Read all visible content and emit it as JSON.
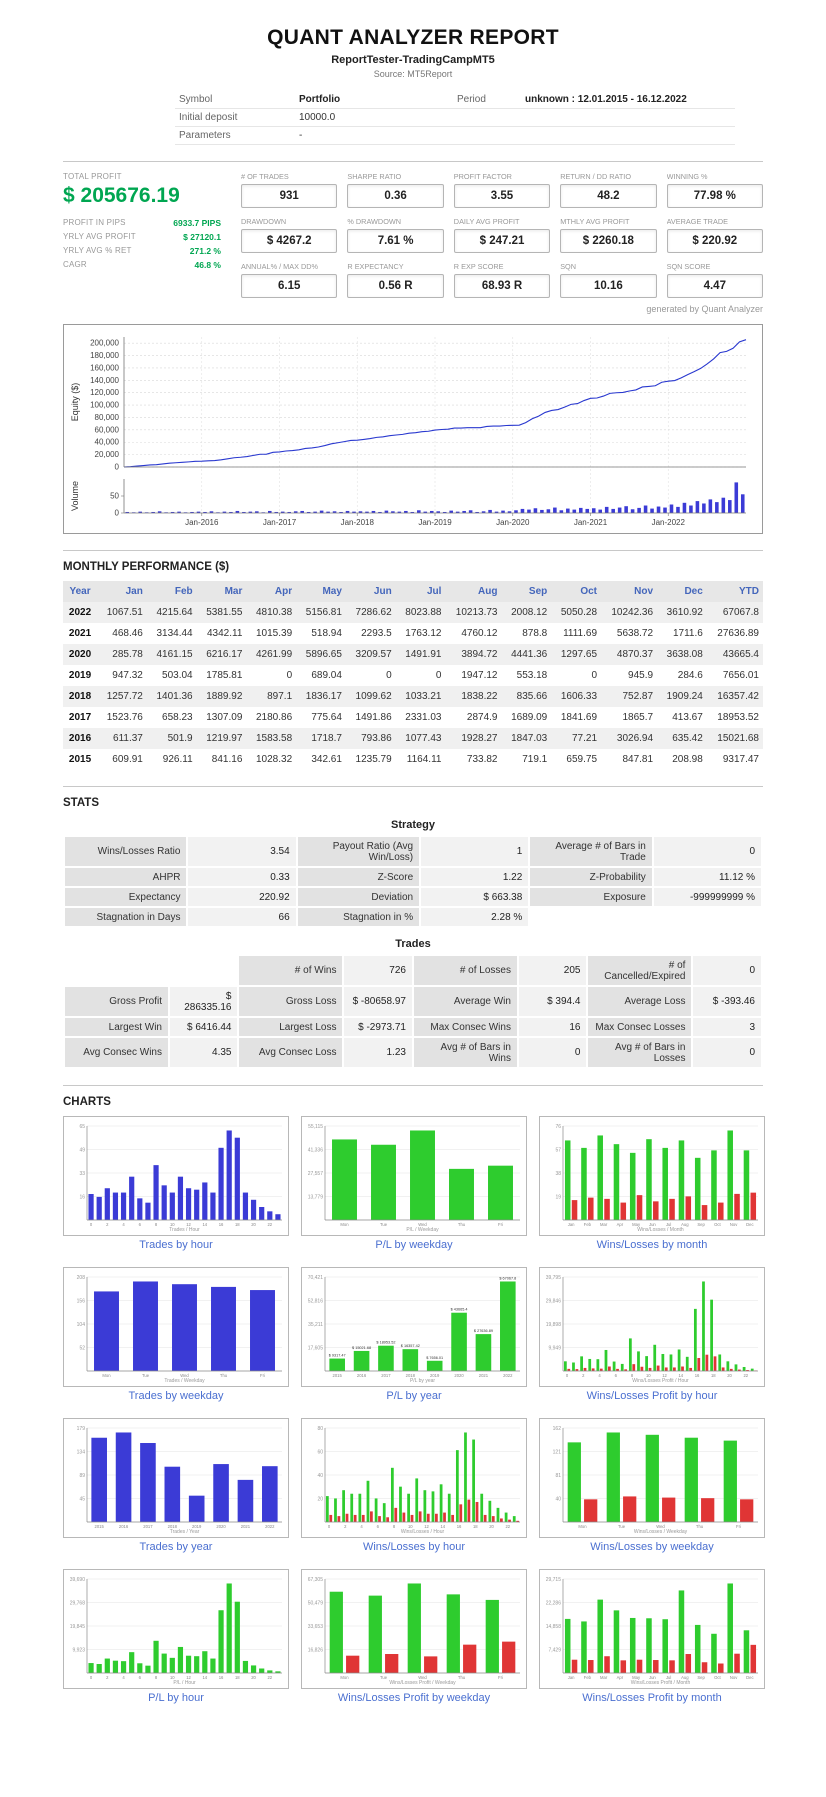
{
  "colors": {
    "green": "#00a651",
    "link": "#4a6fd0",
    "header_blue": "#4466bb",
    "bar_blue": "#3b3bd6",
    "bar_green": "#2ecc2e",
    "bar_red": "#e03535",
    "line": "#2938cf"
  },
  "header": {
    "title": "QUANT ANALYZER REPORT",
    "subtitle": "ReportTester-TradingCampMT5",
    "source": "Source: MT5Report"
  },
  "info": {
    "symbol_label": "Symbol",
    "symbol_value": "Portfolio",
    "period_label": "Period",
    "period_value": "unknown : 12.01.2015 - 16.12.2022",
    "initial_deposit_label": "Initial deposit",
    "initial_deposit_value": "10000.0",
    "parameters_label": "Parameters",
    "parameters_value": "-"
  },
  "summary": {
    "total_profit_label": "TOTAL PROFIT",
    "total_profit_value": "$ 205676.19",
    "rows": [
      {
        "label": "PROFIT IN PIPS",
        "value": "6933.7 PIPS"
      },
      {
        "label": "YRLY AVG PROFIT",
        "value": "$ 27120.1"
      },
      {
        "label": "YRLY AVG % RET",
        "value": "271.2 %"
      },
      {
        "label": "CAGR",
        "value": "46.8 %"
      }
    ],
    "generated_by": "generated by Quant Analyzer"
  },
  "kpis": [
    {
      "label": "# OF TRADES",
      "value": "931"
    },
    {
      "label": "SHARPE RATIO",
      "value": "0.36"
    },
    {
      "label": "PROFIT FACTOR",
      "value": "3.55"
    },
    {
      "label": "RETURN / DD RATIO",
      "value": "48.2"
    },
    {
      "label": "WINNING %",
      "value": "77.98 %"
    },
    {
      "label": "DRAWDOWN",
      "value": "$ 4267.2"
    },
    {
      "label": "% DRAWDOWN",
      "value": "7.61 %"
    },
    {
      "label": "DAILY AVG PROFIT",
      "value": "$ 247.21"
    },
    {
      "label": "MTHLY AVG PROFIT",
      "value": "$ 2260.18"
    },
    {
      "label": "AVERAGE TRADE",
      "value": "$ 220.92"
    },
    {
      "label": "ANNUAL% / MAX DD%",
      "value": "6.15"
    },
    {
      "label": "R EXPECTANCY",
      "value": "0.56 R"
    },
    {
      "label": "R EXP SCORE",
      "value": "68.93 R"
    },
    {
      "label": "SQN",
      "value": "10.16"
    },
    {
      "label": "SQN SCORE",
      "value": "4.47"
    }
  ],
  "monthly": {
    "title": "MONTHLY PERFORMANCE ($)",
    "columns": [
      "Year",
      "Jan",
      "Feb",
      "Mar",
      "Apr",
      "May",
      "Jun",
      "Jul",
      "Aug",
      "Sep",
      "Oct",
      "Nov",
      "Dec",
      "YTD"
    ],
    "rows": [
      [
        "2022",
        "1067.51",
        "4215.64",
        "5381.55",
        "4810.38",
        "5156.81",
        "7286.62",
        "8023.88",
        "10213.73",
        "2008.12",
        "5050.28",
        "10242.36",
        "3610.92",
        "67067.8"
      ],
      [
        "2021",
        "468.46",
        "3134.44",
        "4342.11",
        "1015.39",
        "518.94",
        "2293.5",
        "1763.12",
        "4760.12",
        "878.8",
        "1111.69",
        "5638.72",
        "1711.6",
        "27636.89"
      ],
      [
        "2020",
        "285.78",
        "4161.15",
        "6216.17",
        "4261.99",
        "5896.65",
        "3209.57",
        "1491.91",
        "3894.72",
        "4441.36",
        "1297.65",
        "4870.37",
        "3638.08",
        "43665.4"
      ],
      [
        "2019",
        "947.32",
        "503.04",
        "1785.81",
        "0",
        "689.04",
        "0",
        "0",
        "1947.12",
        "553.18",
        "0",
        "945.9",
        "284.6",
        "7656.01"
      ],
      [
        "2018",
        "1257.72",
        "1401.36",
        "1889.92",
        "897.1",
        "1836.17",
        "1099.62",
        "1033.21",
        "1838.22",
        "835.66",
        "1606.33",
        "752.87",
        "1909.24",
        "16357.42"
      ],
      [
        "2017",
        "1523.76",
        "658.23",
        "1307.09",
        "2180.86",
        "775.64",
        "1491.86",
        "2331.03",
        "2874.9",
        "1689.09",
        "1841.69",
        "1865.7",
        "413.67",
        "18953.52"
      ],
      [
        "2016",
        "611.37",
        "501.9",
        "1219.97",
        "1583.58",
        "1718.7",
        "793.86",
        "1077.43",
        "1928.27",
        "1847.03",
        "77.21",
        "3026.94",
        "635.42",
        "15021.68"
      ],
      [
        "2015",
        "609.91",
        "926.11",
        "841.16",
        "1028.32",
        "342.61",
        "1235.79",
        "1164.11",
        "733.82",
        "719.1",
        "659.75",
        "847.81",
        "208.98",
        "9317.47"
      ]
    ]
  },
  "stats": {
    "title": "STATS",
    "strategy_title": "Strategy",
    "strategy_rows": [
      [
        [
          "Wins/Losses Ratio",
          "3.54"
        ],
        [
          "Payout Ratio (Avg Win/Loss)",
          "1"
        ],
        [
          "Average # of Bars in Trade",
          "0"
        ]
      ],
      [
        [
          "AHPR",
          "0.33"
        ],
        [
          "Z-Score",
          "1.22"
        ],
        [
          "Z-Probability",
          "11.12 %"
        ]
      ],
      [
        [
          "Expectancy",
          "220.92"
        ],
        [
          "Deviation",
          "$ 663.38"
        ],
        [
          "Exposure",
          "-999999999 %"
        ]
      ],
      [
        [
          "Stagnation in Days",
          "66"
        ],
        [
          "Stagnation in %",
          "2.28 %"
        ],
        [
          "",
          ""
        ]
      ]
    ],
    "trades_title": "Trades",
    "trades_rows": [
      [
        [
          "",
          ""
        ],
        [
          "# of Wins",
          "726"
        ],
        [
          "# of Losses",
          "205"
        ],
        [
          "# of Cancelled/Expired",
          "0"
        ]
      ],
      [
        [
          "Gross Profit",
          "$ 286335.16"
        ],
        [
          "Gross Loss",
          "$ -80658.97"
        ],
        [
          "Average Win",
          "$ 394.4"
        ],
        [
          "Average Loss",
          "$ -393.46"
        ]
      ],
      [
        [
          "Largest Win",
          "$ 6416.44"
        ],
        [
          "Largest Loss",
          "$ -2973.71"
        ],
        [
          "Max Consec Wins",
          "16"
        ],
        [
          "Max Consec Losses",
          "3"
        ]
      ],
      [
        [
          "Avg Consec Wins",
          "4.35"
        ],
        [
          "Avg Consec Loss",
          "1.23"
        ],
        [
          "Avg # of Bars in Wins",
          "0"
        ],
        [
          "Avg # of Bars in Losses",
          "0"
        ]
      ]
    ]
  },
  "charts_section": {
    "title": "CHARTS"
  },
  "chart_data": {
    "equity": {
      "type": "line",
      "ylabel": "Equity ($)",
      "volume_label": "Volume",
      "y_ticks": [
        0,
        20000,
        40000,
        60000,
        80000,
        100000,
        120000,
        140000,
        160000,
        180000,
        200000
      ],
      "x_labels": [
        "Jan-2016",
        "Jan-2017",
        "Jan-2018",
        "Jan-2019",
        "Jan-2020",
        "Jan-2021",
        "Jan-2022"
      ],
      "volume_ticks": [
        0,
        50
      ],
      "end_value": 205676.19,
      "volume": [
        3,
        2,
        4,
        2,
        3,
        5,
        2,
        3,
        4,
        2,
        3,
        4,
        3,
        5,
        2,
        4,
        3,
        6,
        3,
        4,
        5,
        2,
        6,
        3,
        4,
        3,
        5,
        6,
        3,
        4,
        7,
        4,
        5,
        3,
        6,
        4,
        5,
        4,
        6,
        3,
        7,
        5,
        4,
        6,
        3,
        8,
        4,
        6,
        5,
        3,
        7,
        4,
        6,
        8,
        3,
        5,
        9,
        4,
        7,
        5,
        8,
        12,
        10,
        14,
        9,
        11,
        16,
        8,
        13,
        10,
        15,
        12,
        14,
        10,
        18,
        12,
        16,
        20,
        11,
        15,
        22,
        13,
        19,
        16,
        25,
        18,
        30,
        22,
        35,
        28,
        40,
        32,
        45,
        38,
        90,
        55
      ]
    },
    "mini": [
      {
        "title": "Trades by hour",
        "type": "bar",
        "color": "blue",
        "xlabel": "Trades / Hour",
        "categories": [
          "0",
          "1",
          "2",
          "3",
          "4",
          "5",
          "6",
          "7",
          "8",
          "9",
          "10",
          "11",
          "12",
          "13",
          "14",
          "15",
          "16",
          "17",
          "18",
          "19",
          "20",
          "21",
          "22",
          "23"
        ],
        "values": [
          18,
          16,
          22,
          19,
          19,
          30,
          15,
          12,
          38,
          24,
          19,
          30,
          22,
          21,
          26,
          19,
          50,
          62,
          57,
          19,
          14,
          9,
          6,
          4
        ]
      },
      {
        "title": "P/L by weekday",
        "type": "bar",
        "color": "green",
        "xlabel": "P/L / Weekday",
        "categories": [
          "Mon",
          "Tue",
          "Wed",
          "Thu",
          "Fri"
        ],
        "values": [
          47235,
          44120,
          52490,
          29980,
          31851
        ]
      },
      {
        "title": "Wins/Losses by month",
        "type": "winloss",
        "xlabel": "Wins/Losses / Month",
        "categories": [
          "Jan",
          "Feb",
          "Mar",
          "Apr",
          "May",
          "Jun",
          "Jul",
          "Aug",
          "Sep",
          "Oct",
          "Nov",
          "Dec"
        ],
        "wins": [
          64,
          58,
          68,
          61,
          54,
          65,
          58,
          64,
          50,
          56,
          72,
          56
        ],
        "losses": [
          16,
          18,
          17,
          14,
          20,
          15,
          17,
          19,
          12,
          14,
          21,
          22
        ]
      },
      {
        "title": "Trades by weekday",
        "type": "bar",
        "color": "blue",
        "xlabel": "Trades / Weekday",
        "categories": [
          "Mon",
          "Tue",
          "Wed",
          "Thu",
          "Fri"
        ],
        "values": [
          176,
          198,
          192,
          186,
          179
        ]
      },
      {
        "title": "P/L by year",
        "type": "bar",
        "color": "green",
        "xlabel": "P/L by year",
        "show_labels": true,
        "categories": [
          "2015",
          "2016",
          "2017",
          "2018",
          "2019",
          "2020",
          "2021",
          "2022"
        ],
        "values": [
          9317.47,
          15021.68,
          18953.52,
          16357.42,
          7656.01,
          43665.4,
          27636.89,
          67067.8
        ]
      },
      {
        "title": "Wins/Losses Profit by hour",
        "type": "winloss",
        "xlabel": "Wins/Losses Profit / Hour",
        "categories": [
          "0",
          "1",
          "2",
          "3",
          "4",
          "5",
          "6",
          "7",
          "8",
          "9",
          "10",
          "11",
          "12",
          "13",
          "14",
          "15",
          "16",
          "17",
          "18",
          "19",
          "20",
          "21",
          "22",
          "23"
        ],
        "wins": [
          4100,
          3600,
          6200,
          5100,
          5000,
          8900,
          4000,
          3000,
          13800,
          8300,
          6300,
          11100,
          7200,
          7000,
          9100,
          6000,
          26300,
          37900,
          30200,
          7000,
          4100,
          2800,
          1700,
          1000
        ],
        "losses": [
          900,
          800,
          1300,
          1100,
          1000,
          1900,
          900,
          700,
          2900,
          1800,
          1300,
          2300,
          1500,
          1500,
          1900,
          1300,
          5500,
          6900,
          6200,
          1500,
          900,
          600,
          400,
          200
        ]
      },
      {
        "title": "Trades by year",
        "type": "bar",
        "color": "blue",
        "xlabel": "Trades / Year",
        "categories": [
          "2015",
          "2016",
          "2017",
          "2018",
          "2019",
          "2020",
          "2021",
          "2022"
        ],
        "values": [
          160,
          170,
          150,
          105,
          50,
          110,
          80,
          106
        ]
      },
      {
        "title": "Wins/Losses by hour",
        "type": "winloss",
        "xlabel": "Wins/Losses / Hour",
        "categories": [
          "0",
          "1",
          "2",
          "3",
          "4",
          "5",
          "6",
          "7",
          "8",
          "9",
          "10",
          "11",
          "12",
          "13",
          "14",
          "15",
          "16",
          "17",
          "18",
          "19",
          "20",
          "21",
          "22",
          "23"
        ],
        "wins": [
          22,
          20,
          27,
          24,
          24,
          35,
          20,
          16,
          46,
          30,
          24,
          37,
          27,
          26,
          32,
          24,
          61,
          76,
          70,
          24,
          18,
          12,
          8,
          5
        ],
        "losses": [
          6,
          5,
          7,
          6,
          6,
          9,
          5,
          4,
          12,
          8,
          6,
          9,
          7,
          7,
          8,
          6,
          15,
          19,
          17,
          6,
          5,
          3,
          2,
          1
        ]
      },
      {
        "title": "Wins/Losses by weekday",
        "type": "winloss",
        "xlabel": "Wins/Losses / Weekday",
        "categories": [
          "Mon",
          "Tue",
          "Wed",
          "Thu",
          "Fri"
        ],
        "wins": [
          137,
          154,
          150,
          145,
          140
        ],
        "losses": [
          39,
          44,
          42,
          41,
          39
        ]
      },
      {
        "title": "P/L by hour",
        "type": "bar",
        "color": "green",
        "xlabel": "P/L / Hour",
        "categories": [
          "0",
          "1",
          "2",
          "3",
          "4",
          "5",
          "6",
          "7",
          "8",
          "9",
          "10",
          "11",
          "12",
          "13",
          "14",
          "15",
          "16",
          "17",
          "18",
          "19",
          "20",
          "21",
          "22",
          "23"
        ],
        "values": [
          4200,
          3800,
          6100,
          5200,
          5000,
          8800,
          4100,
          3100,
          13600,
          8200,
          6400,
          11000,
          7300,
          7100,
          9200,
          6100,
          26500,
          37800,
          30100,
          5100,
          3200,
          1900,
          1100,
          700
        ]
      },
      {
        "title": "Wins/Losses Profit by weekday",
        "type": "winloss",
        "xlabel": "Wins/Losses Profit / Weekday",
        "categories": [
          "Mon",
          "Tue",
          "Wed",
          "Thu",
          "Fri"
        ],
        "wins": [
          58200,
          55400,
          64100,
          56300,
          52335
        ],
        "losses": [
          12400,
          13600,
          11900,
          20300,
          22459
        ]
      },
      {
        "title": "Wins/Losses Profit by month",
        "type": "winloss",
        "xlabel": "Wins/Losses Profit / Month",
        "categories": [
          "Jan",
          "Feb",
          "Mar",
          "Apr",
          "May",
          "Jun",
          "Jul",
          "Aug",
          "Sep",
          "Oct",
          "Nov",
          "Dec"
        ],
        "wins": [
          17100,
          16300,
          23200,
          19800,
          17400,
          17300,
          17000,
          26100,
          15200,
          12400,
          28300,
          13500
        ],
        "losses": [
          4200,
          4100,
          5300,
          4000,
          4200,
          4100,
          4000,
          6000,
          3400,
          3000,
          6100,
          8900
        ]
      }
    ]
  }
}
